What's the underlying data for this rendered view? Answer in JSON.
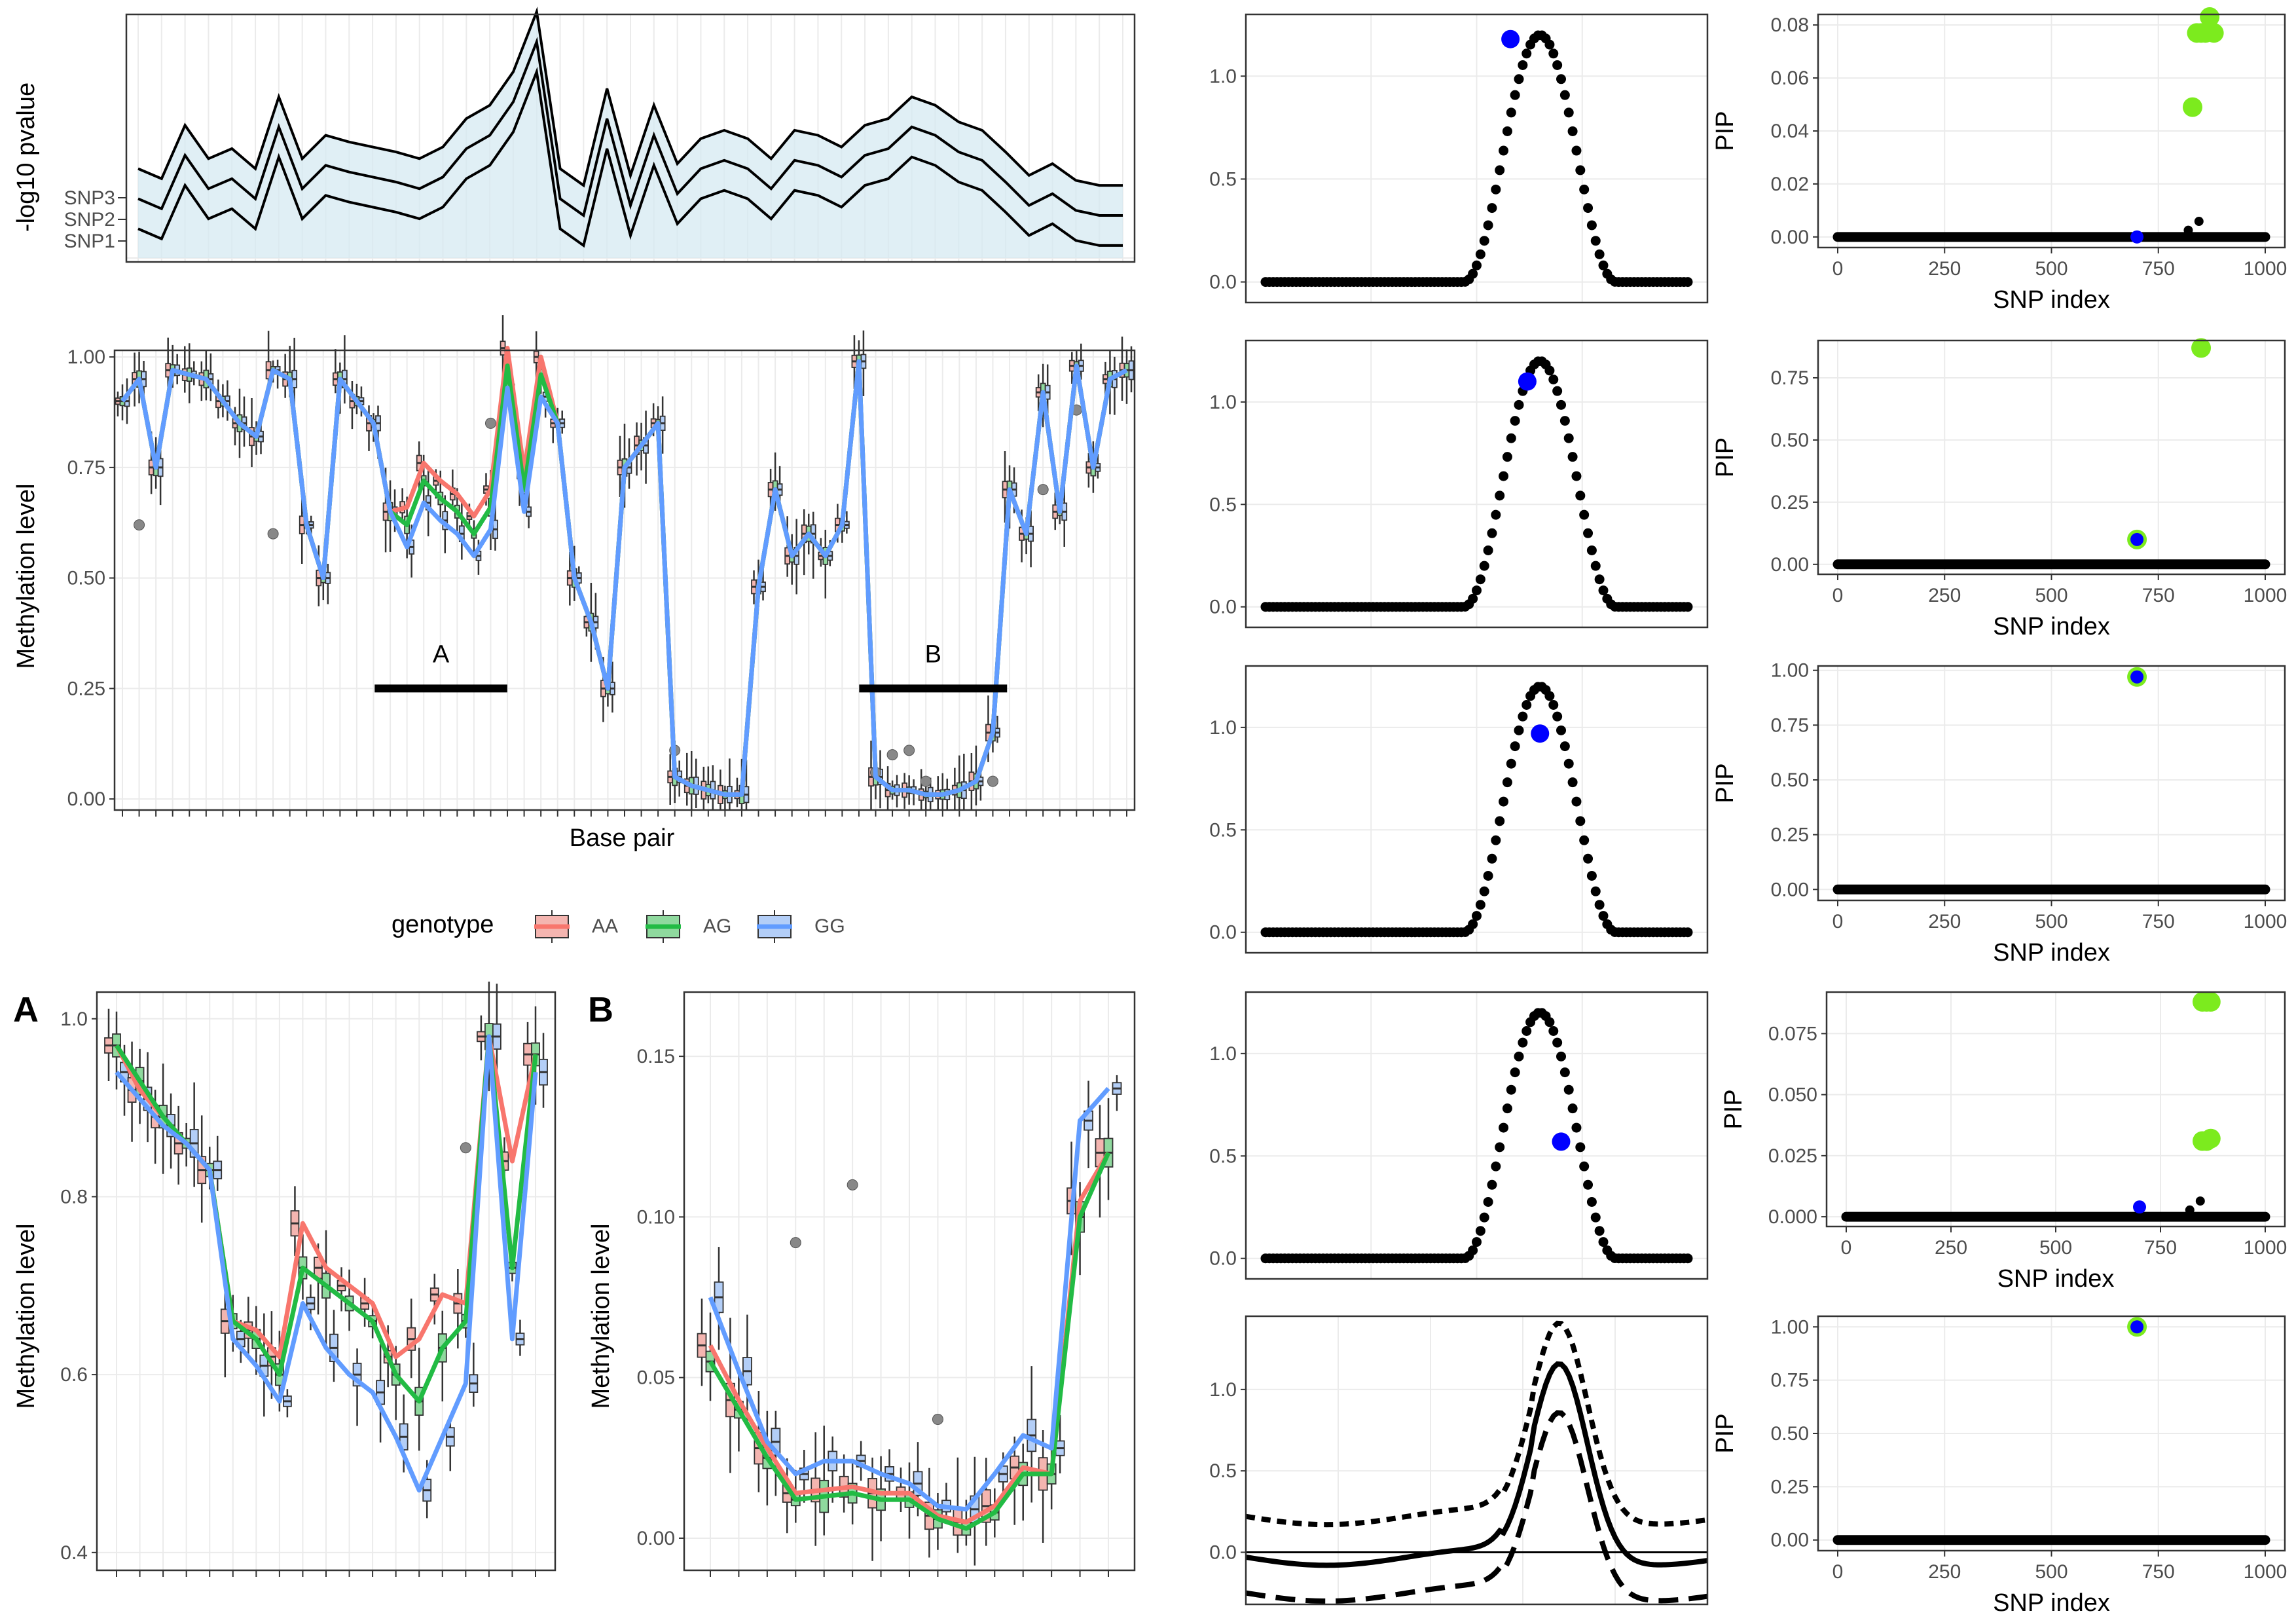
{
  "colors": {
    "AA": "#F8766D",
    "AG": "#22BB44",
    "GG": "#619CFF",
    "AA_fill": "#F4B5B0",
    "AG_fill": "#8FD99E",
    "GG_fill": "#B3CEF7",
    "highlight": "#0000FF",
    "causal": "#7CEB1E",
    "band": "#D6EAF2",
    "grid": "#EBEBEB"
  },
  "top_panel": {
    "ylabel": "-log10 pvalue",
    "snp_labels": [
      "SNP1",
      "SNP2",
      "SNP3"
    ],
    "series": [
      {
        "name": "SNP1",
        "values": [
          0.12,
          0.06,
          0.38,
          0.18,
          0.24,
          0.12,
          0.55,
          0.18,
          0.32,
          0.28,
          0.25,
          0.22,
          0.18,
          0.25,
          0.42,
          0.5,
          0.7,
          1.06,
          0.12,
          0.02,
          0.6,
          0.08,
          0.5,
          0.15,
          0.3,
          0.35,
          0.3,
          0.18,
          0.35,
          0.32,
          0.25,
          0.38,
          0.42,
          0.55,
          0.5,
          0.4,
          0.35,
          0.22,
          0.08,
          0.15,
          0.05,
          0.02,
          0.02
        ]
      },
      {
        "name": "SNP2",
        "values": [
          0.3,
          0.24,
          0.56,
          0.36,
          0.42,
          0.3,
          0.73,
          0.36,
          0.5,
          0.46,
          0.43,
          0.4,
          0.36,
          0.43,
          0.6,
          0.68,
          0.88,
          1.24,
          0.3,
          0.2,
          0.78,
          0.26,
          0.68,
          0.33,
          0.48,
          0.53,
          0.48,
          0.36,
          0.53,
          0.5,
          0.43,
          0.56,
          0.6,
          0.73,
          0.68,
          0.58,
          0.53,
          0.4,
          0.26,
          0.33,
          0.23,
          0.2,
          0.2
        ]
      },
      {
        "name": "SNP3",
        "values": [
          0.48,
          0.42,
          0.74,
          0.54,
          0.6,
          0.48,
          0.91,
          0.54,
          0.68,
          0.64,
          0.61,
          0.58,
          0.54,
          0.61,
          0.78,
          0.86,
          1.06,
          1.42,
          0.48,
          0.38,
          0.96,
          0.44,
          0.86,
          0.51,
          0.66,
          0.71,
          0.66,
          0.54,
          0.71,
          0.68,
          0.61,
          0.74,
          0.78,
          0.91,
          0.86,
          0.76,
          0.71,
          0.58,
          0.44,
          0.51,
          0.41,
          0.38,
          0.38
        ]
      }
    ]
  },
  "main_panel": {
    "ylabel": "Methylation level",
    "xlabel": "Base pair",
    "yticks": [
      "0.00",
      "0.25",
      "0.50",
      "0.75",
      "1.00"
    ],
    "regions": [
      {
        "label": "A",
        "from": 0.255,
        "to": 0.385,
        "level": 0.25
      },
      {
        "label": "B",
        "from": 0.73,
        "to": 0.875,
        "level": 0.25
      }
    ],
    "ylim": [
      0,
      1
    ]
  },
  "legend": {
    "title": "genotype",
    "items": [
      "AA",
      "AG",
      "GG"
    ]
  },
  "panel_A": {
    "tag": "A",
    "ylabel": "Methylation level",
    "yticks": [
      "0.4",
      "0.6",
      "0.8",
      "1.0"
    ],
    "ylim": [
      0.38,
      1.03
    ]
  },
  "panel_B": {
    "tag": "B",
    "ylabel": "Methylation level",
    "yticks": [
      "0.00",
      "0.05",
      "0.10",
      "0.15"
    ],
    "ylim": [
      -0.01,
      0.17
    ]
  },
  "effect_panels": {
    "yticks": [
      "0.0",
      "0.5",
      "1.0"
    ],
    "highlights": [
      {
        "index": 0.58,
        "value": 1.18
      },
      {
        "index": 0.62,
        "value": 1.1
      },
      {
        "index": 0.65,
        "value": 0.97
      },
      {
        "index": 0.7,
        "value": 0.57
      }
    ],
    "ylim": [
      -0.1,
      1.3
    ]
  },
  "pip_panels": {
    "ylabel": "PIP",
    "xlabel": "SNP index",
    "xticks": [
      "0",
      "250",
      "500",
      "750",
      "1000"
    ],
    "panels": [
      {
        "yticks": [
          "0.00",
          "0.02",
          "0.04",
          "0.06",
          "0.08"
        ],
        "ylim": [
          -0.004,
          0.084
        ],
        "blue": [
          700,
          0.0
        ],
        "green": [
          [
            830,
            0.049
          ],
          [
            840,
            0.077
          ],
          [
            850,
            0.077
          ],
          [
            860,
            0.077
          ],
          [
            870,
            0.083
          ],
          [
            880,
            0.077
          ]
        ]
      },
      {
        "yticks": [
          "0.00",
          "0.25",
          "0.50",
          "0.75"
        ],
        "ylim": [
          -0.04,
          0.9
        ],
        "blue": [
          700,
          0.1
        ],
        "green": [
          [
            700,
            0.1
          ],
          [
            850,
            0.87
          ]
        ]
      },
      {
        "yticks": [
          "0.00",
          "0.25",
          "0.50",
          "0.75",
          "1.00"
        ],
        "ylim": [
          -0.05,
          1.02
        ],
        "blue": [
          700,
          0.97
        ],
        "green": [
          [
            700,
            0.97
          ]
        ]
      },
      {
        "yticks": [
          "0.000",
          "0.025",
          "0.050",
          "0.075"
        ],
        "ylim": [
          -0.004,
          0.092
        ],
        "blue": [
          700,
          0.004
        ],
        "green": [
          [
            850,
            0.031
          ],
          [
            860,
            0.031
          ],
          [
            870,
            0.032
          ],
          [
            850,
            0.088
          ],
          [
            860,
            0.088
          ],
          [
            870,
            0.088
          ]
        ]
      },
      {
        "yticks": [
          "0.00",
          "0.25",
          "0.50",
          "0.75",
          "1.00"
        ],
        "ylim": [
          -0.05,
          1.05
        ],
        "blue": [
          700,
          1.0
        ],
        "green": [
          [
            700,
            1.0
          ]
        ]
      }
    ]
  },
  "chart_data": [
    {
      "type": "line",
      "title": "",
      "ylabel": "-log10 pvalue",
      "series_names": [
        "SNP1",
        "SNP2",
        "SNP3"
      ]
    },
    {
      "type": "bar",
      "title": "",
      "xlabel": "Base pair",
      "ylabel": "Methylation level",
      "ylim": [
        0,
        1
      ]
    },
    {
      "type": "line",
      "title": "",
      "ylabel": "PIP",
      "xlabel": "SNP index",
      "xlim": [
        0,
        1000
      ]
    }
  ]
}
